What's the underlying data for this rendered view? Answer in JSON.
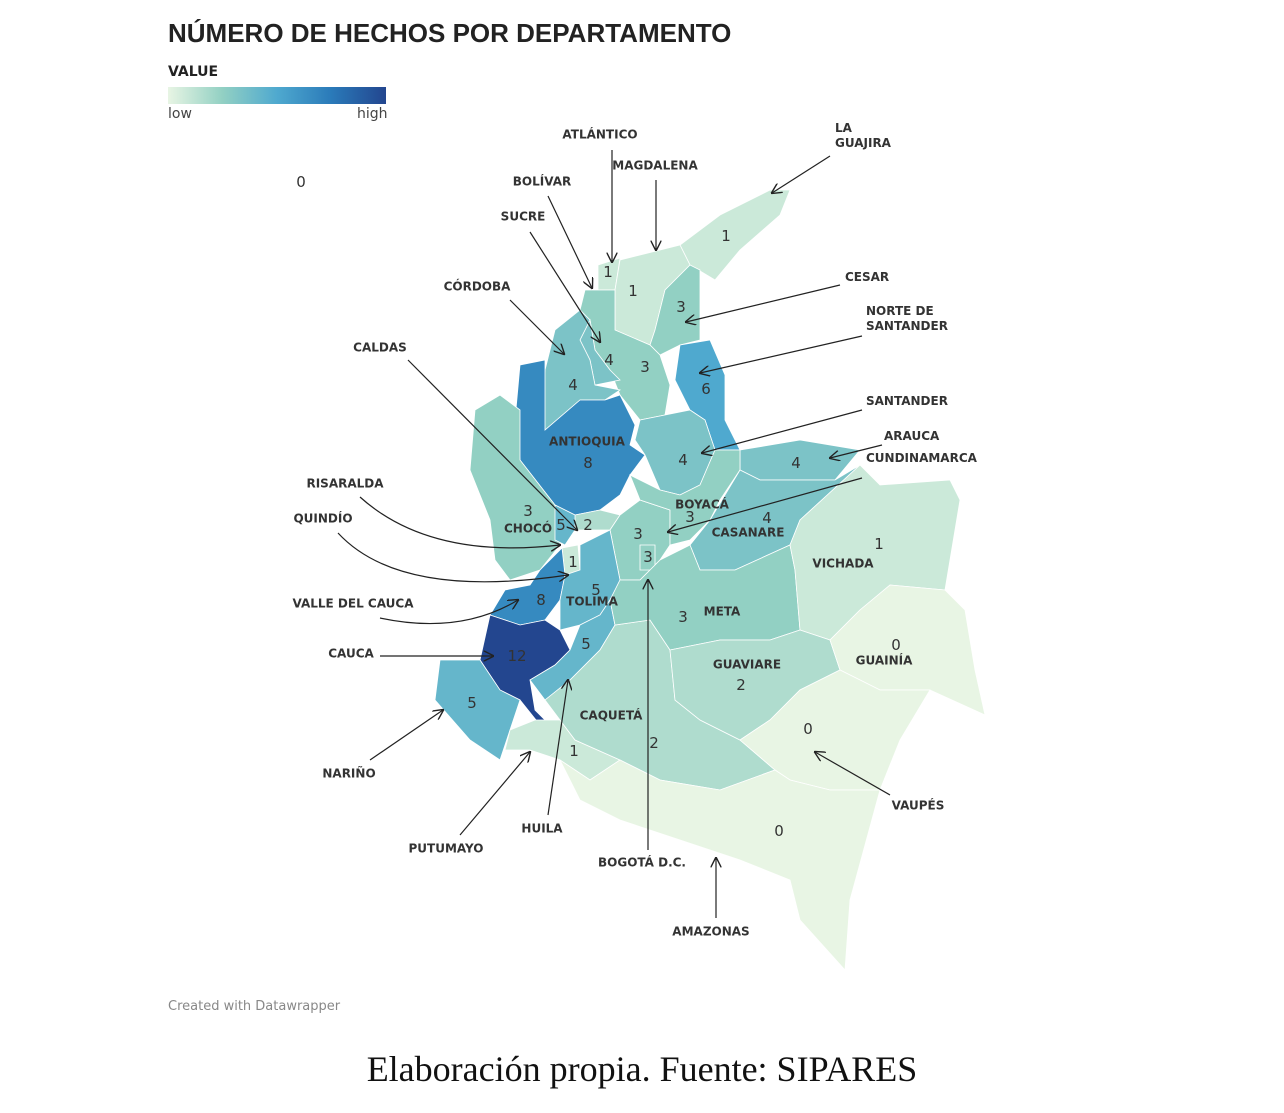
{
  "title": "NÚMERO DE HECHOS POR DEPARTAMENTO",
  "legend": {
    "title": "VALUE",
    "low": "low",
    "high": "high",
    "colors": [
      "#e8f5e4",
      "#92d0c3",
      "#4fa9cf",
      "#2a7ab9",
      "#23468f"
    ]
  },
  "unlabeled_value": 0,
  "regions": [
    {
      "name": "LA GUAJIRA",
      "value": 1
    },
    {
      "name": "ATLÁNTICO",
      "value": 1
    },
    {
      "name": "MAGDALENA",
      "value": 1
    },
    {
      "name": "CESAR",
      "value": 3
    },
    {
      "name": "BOLÍVAR",
      "value": 3
    },
    {
      "name": "SUCRE",
      "value": 4
    },
    {
      "name": "CÓRDOBA",
      "value": 4
    },
    {
      "name": "NORTE DE SANTANDER",
      "value": 6
    },
    {
      "name": "ANTIOQUIA",
      "value": 8
    },
    {
      "name": "SANTANDER",
      "value": 4
    },
    {
      "name": "ARAUCA",
      "value": 4
    },
    {
      "name": "CHOCÓ",
      "value": 3
    },
    {
      "name": "CALDAS",
      "value": 2
    },
    {
      "name": "RISARALDA",
      "value": 5
    },
    {
      "name": "QUINDÍO",
      "value": 1
    },
    {
      "name": "CUNDINAMARCA",
      "value": 3
    },
    {
      "name": "BOYACÁ",
      "value": 3
    },
    {
      "name": "CASANARE",
      "value": 4
    },
    {
      "name": "BOGOTÁ D.C.",
      "value": 3
    },
    {
      "name": "VALLE DEL CAUCA",
      "value": 8
    },
    {
      "name": "TOLIMA",
      "value": 5
    },
    {
      "name": "CAUCA",
      "value": 12
    },
    {
      "name": "HUILA",
      "value": 5
    },
    {
      "name": "NARIÑO",
      "value": 5
    },
    {
      "name": "PUTUMAYO",
      "value": 1
    },
    {
      "name": "CAQUETÁ",
      "value": 2
    },
    {
      "name": "META",
      "value": 3
    },
    {
      "name": "VICHADA",
      "value": 1
    },
    {
      "name": "GUAVIARE",
      "value": 2
    },
    {
      "name": "GUAINÍA",
      "value": 0
    },
    {
      "name": "VAUPÉS",
      "value": 0
    },
    {
      "name": "AMAZONAS",
      "value": 0
    }
  ],
  "credit": "Created with Datawrapper",
  "caption": "Elaboración propia. Fuente: SIPARES"
}
